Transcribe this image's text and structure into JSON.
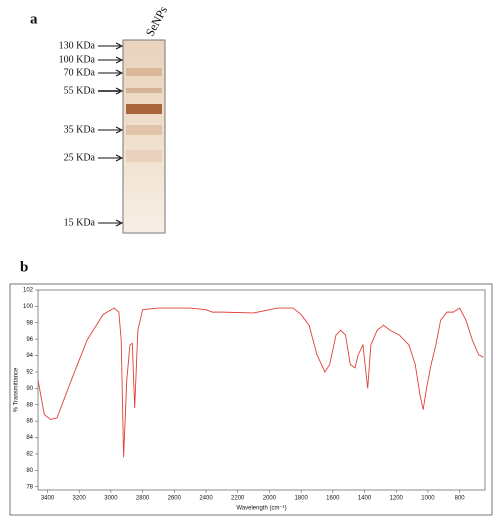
{
  "panel_a": {
    "label": "a",
    "lane": "SeNPs",
    "markers": [
      "130 KDa",
      "100 KDa",
      "70 KDa",
      "55 KDa",
      "35 KDa",
      "25 KDa",
      "15 KDa"
    ]
  },
  "panel_b": {
    "label": "b"
  },
  "chart_data": {
    "type": "line",
    "color": "#e0403a",
    "x_label": "Wavelength (cm⁻¹)",
    "y_label": "% Transmittance",
    "x": [
      3460,
      3420,
      3380,
      3340,
      3250,
      3150,
      3050,
      2980,
      2950,
      2935,
      2920,
      2900,
      2880,
      2865,
      2850,
      2830,
      2800,
      2700,
      2500,
      2400,
      2360,
      2300,
      2100,
      1950,
      1850,
      1800,
      1750,
      1700,
      1650,
      1620,
      1580,
      1550,
      1520,
      1490,
      1460,
      1440,
      1410,
      1380,
      1360,
      1320,
      1280,
      1240,
      1180,
      1120,
      1080,
      1050,
      1030,
      1010,
      980,
      950,
      920,
      880,
      840,
      800,
      760,
      720,
      680,
      650
    ],
    "values": [
      91.0,
      86.8,
      86.2,
      86.4,
      91.0,
      95.9,
      99.0,
      99.8,
      99.3,
      95.9,
      81.6,
      91.0,
      95.3,
      95.5,
      87.6,
      97.1,
      99.6,
      99.8,
      99.8,
      99.6,
      99.3,
      99.3,
      99.2,
      99.8,
      99.8,
      99.0,
      97.7,
      94.1,
      92.0,
      92.9,
      96.5,
      97.1,
      96.5,
      92.9,
      92.5,
      94.1,
      95.3,
      90.0,
      95.3,
      97.1,
      97.7,
      97.1,
      96.5,
      95.3,
      92.9,
      89.2,
      87.4,
      89.9,
      92.9,
      95.3,
      98.3,
      99.3,
      99.3,
      99.8,
      98.3,
      95.9,
      94.1,
      93.8
    ],
    "xlim": [
      3460,
      640
    ],
    "ylim": [
      77.6,
      102
    ],
    "xticks": [
      3400,
      3200,
      3000,
      2800,
      2600,
      2400,
      2200,
      2000,
      1800,
      1600,
      1400,
      1200,
      1000,
      800
    ],
    "yticks": [
      78,
      80,
      82,
      84,
      86,
      88,
      90,
      92,
      94,
      96,
      98,
      100,
      102
    ]
  }
}
